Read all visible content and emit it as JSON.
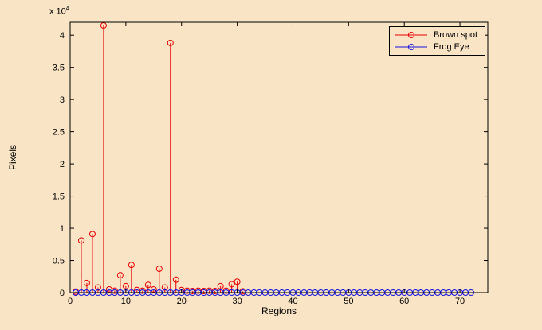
{
  "figure": {
    "background_color": "#f9e4c5",
    "axes_background_color": "#f9e4c5",
    "axis_line_color": "#000000"
  },
  "chart_data": {
    "type": "stem",
    "title": "",
    "xlabel": "Regions",
    "ylabel": "Pixels",
    "y_exponent_base": "x 10",
    "y_exponent_power": "4",
    "xlim": [
      0,
      75
    ],
    "ylim": [
      0,
      42000
    ],
    "x_ticks": [
      0,
      10,
      20,
      30,
      40,
      50,
      60,
      70
    ],
    "x_tick_labels": [
      "0",
      "10",
      "20",
      "30",
      "40",
      "50",
      "60",
      "70"
    ],
    "y_ticks": [
      0,
      5000,
      10000,
      15000,
      20000,
      25000,
      30000,
      35000,
      40000
    ],
    "y_tick_labels": [
      "0",
      "0.5",
      "1",
      "1.5",
      "2",
      "2.5",
      "3",
      "3.5",
      "4"
    ],
    "grid": false,
    "legend_position": "top-right",
    "series": [
      {
        "name": "Brown spot",
        "color": "#e60000",
        "marker": "circle",
        "draw_stems": true,
        "draw_line": false,
        "x": [
          1,
          2,
          3,
          4,
          5,
          6,
          7,
          8,
          9,
          10,
          11,
          12,
          13,
          14,
          15,
          16,
          17,
          18,
          19,
          20,
          21,
          22,
          23,
          24,
          25,
          26,
          27,
          28,
          29,
          30,
          31
        ],
        "y": [
          150,
          8100,
          1500,
          9100,
          800,
          41500,
          500,
          300,
          2700,
          1000,
          4300,
          400,
          300,
          1200,
          500,
          3700,
          800,
          38800,
          2000,
          400,
          300,
          250,
          300,
          250,
          300,
          250,
          1000,
          300,
          1300,
          1700,
          200
        ]
      },
      {
        "name": "Frog Eye",
        "color": "#1414e0",
        "marker": "circle",
        "draw_stems": false,
        "draw_line": true,
        "x": [
          1,
          2,
          3,
          4,
          5,
          6,
          7,
          8,
          9,
          10,
          11,
          12,
          13,
          14,
          15,
          16,
          17,
          18,
          19,
          20,
          21,
          22,
          23,
          24,
          25,
          26,
          27,
          28,
          29,
          30,
          31,
          32,
          33,
          34,
          35,
          36,
          37,
          38,
          39,
          40,
          41,
          42,
          43,
          44,
          45,
          46,
          47,
          48,
          49,
          50,
          51,
          52,
          53,
          54,
          55,
          56,
          57,
          58,
          59,
          60,
          61,
          62,
          63,
          64,
          65,
          66,
          67,
          68,
          69,
          70,
          71,
          72
        ],
        "y": [
          0,
          0,
          0,
          0,
          0,
          0,
          0,
          0,
          0,
          0,
          0,
          0,
          0,
          0,
          0,
          0,
          0,
          0,
          0,
          0,
          0,
          0,
          0,
          0,
          0,
          0,
          0,
          0,
          0,
          0,
          0,
          0,
          0,
          0,
          0,
          0,
          0,
          0,
          0,
          0,
          0,
          0,
          0,
          0,
          0,
          0,
          0,
          0,
          0,
          0,
          0,
          0,
          0,
          0,
          0,
          0,
          0,
          0,
          0,
          0,
          0,
          0,
          0,
          0,
          0,
          0,
          0,
          0,
          0,
          0,
          0,
          0
        ]
      }
    ]
  },
  "legend": {
    "items": [
      {
        "label": "Brown spot"
      },
      {
        "label": "Frog Eye"
      }
    ]
  }
}
